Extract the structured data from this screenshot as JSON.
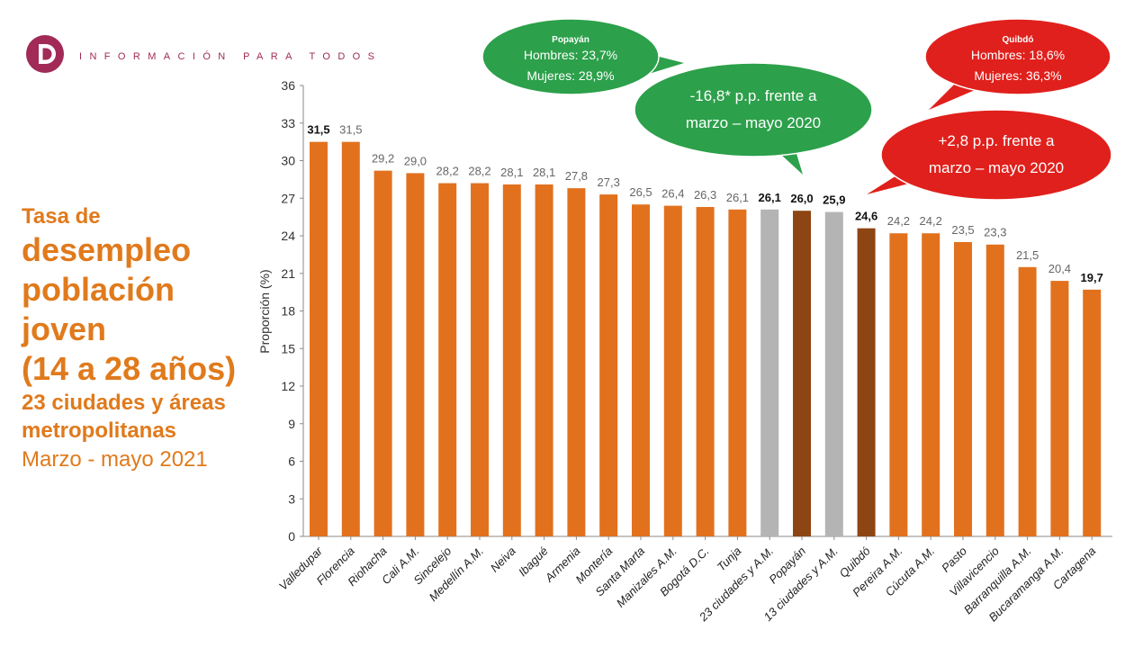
{
  "header": {
    "brand_text": "INFORMACIÓN PARA TODOS"
  },
  "side_title": {
    "line1": "Tasa de",
    "line2": "desempleo",
    "line3": "población",
    "line4": "joven",
    "line5": "(14 a 28 años)",
    "line6": "23 ciudades y áreas",
    "line7": "metropolitanas",
    "line8": "Marzo - mayo 2021"
  },
  "colors": {
    "orange": "#e2711d",
    "brown": "#8e4514",
    "gray": "#b4b4b4",
    "green": "#2ca04a",
    "red": "#e0201c",
    "title_orange": "#e07a1c",
    "brand": "#a12a56"
  },
  "chart_data": {
    "type": "bar",
    "ylabel": "Proporción (%)",
    "xlabel": "",
    "ylim": [
      0,
      36
    ],
    "yticks": [
      0,
      3,
      6,
      9,
      12,
      15,
      18,
      21,
      24,
      27,
      30,
      33,
      36
    ],
    "categories": [
      "Valledupar",
      "Florencia",
      "Riohacha",
      "Cali A.M.",
      "Sincelejo",
      "Medellín A.M.",
      "Neiva",
      "Ibagué",
      "Armenia",
      "Montería",
      "Santa Marta",
      "Manizales A.M.",
      "Bogotá D.C.",
      "Tunja",
      "23 ciudades y A.M.",
      "Popayán",
      "13 ciudades y A.M.",
      "Quibdó",
      "Pereira A.M.",
      "Cúcuta A.M.",
      "Pasto",
      "Villavicencio",
      "Barranquilla A.M.",
      "Bucaramanga A.M.",
      "Cartagena"
    ],
    "values": [
      31.5,
      31.5,
      29.2,
      29.0,
      28.2,
      28.2,
      28.1,
      28.1,
      27.8,
      27.3,
      26.5,
      26.4,
      26.3,
      26.1,
      26.1,
      26.0,
      25.9,
      24.6,
      24.2,
      24.2,
      23.5,
      23.3,
      21.5,
      20.4,
      19.7
    ],
    "value_labels": [
      "31,5",
      "31,5",
      "29,2",
      "29,0",
      "28,2",
      "28,2",
      "28,1",
      "28,1",
      "27,8",
      "27,3",
      "26,5",
      "26,4",
      "26,3",
      "26,1",
      "26,1",
      "26,0",
      "25,9",
      "24,6",
      "24,2",
      "24,2",
      "23,5",
      "23,3",
      "21,5",
      "20,4",
      "19,7"
    ],
    "bar_colors": [
      "orange",
      "orange",
      "orange",
      "orange",
      "orange",
      "orange",
      "orange",
      "orange",
      "orange",
      "orange",
      "orange",
      "orange",
      "orange",
      "orange",
      "gray",
      "brown",
      "gray",
      "brown",
      "orange",
      "orange",
      "orange",
      "orange",
      "orange",
      "orange",
      "orange"
    ],
    "bold_labels": [
      true,
      false,
      false,
      false,
      false,
      false,
      false,
      false,
      false,
      false,
      false,
      false,
      false,
      false,
      true,
      true,
      true,
      true,
      false,
      false,
      false,
      false,
      false,
      false,
      true
    ],
    "annotations": [
      {
        "id": "popayan-detail",
        "color": "green",
        "title": "Popayán",
        "lines": [
          "Hombres: 23,7%",
          "Mujeres: 28,9%"
        ]
      },
      {
        "id": "popayan-change",
        "color": "green",
        "lines": [
          "-16,8* p.p. frente a",
          "marzo – mayo 2020"
        ]
      },
      {
        "id": "quibdo-detail",
        "color": "red",
        "title": "Quibdó",
        "lines": [
          "Hombres: 18,6%",
          "Mujeres: 36,3%"
        ]
      },
      {
        "id": "quibdo-change",
        "color": "red",
        "lines": [
          "+2,8 p.p. frente a",
          "marzo – mayo 2020"
        ]
      }
    ]
  }
}
